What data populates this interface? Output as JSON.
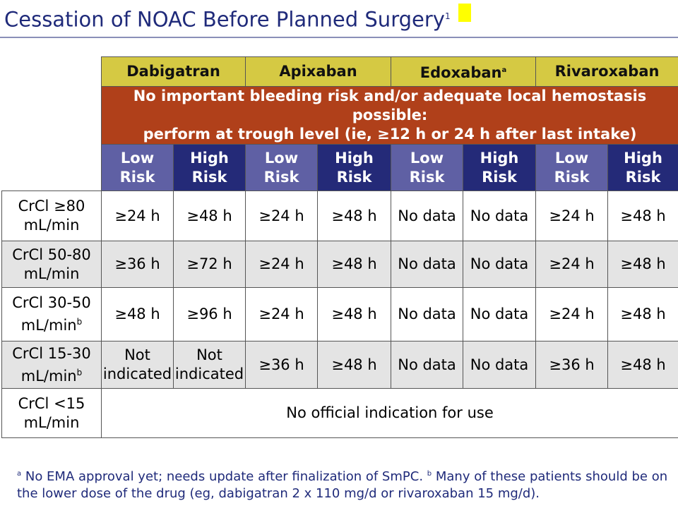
{
  "title": {
    "text": "Cessation of NOAC Before Planned Surgery",
    "superscript": "1",
    "marker_color": "#ffff00"
  },
  "colors": {
    "title": "#1f2a7a",
    "drug_header": "#d5c943",
    "banner": "#b0401a",
    "low_risk": "#5f60a4",
    "high_risk": "#242a78",
    "row_shade": "#e4e4e4"
  },
  "table": {
    "drugs": [
      {
        "name": "Dabigatran",
        "sup": ""
      },
      {
        "name": "Apixaban",
        "sup": ""
      },
      {
        "name": "Edoxaban",
        "sup": "a"
      },
      {
        "name": "Rivaroxaban",
        "sup": ""
      }
    ],
    "banner": {
      "line1": "No important bleeding risk and/or adequate local hemostasis possible:",
      "line2": "perform at trough level (ie, ≥12 h or 24 h after last intake)"
    },
    "risk_headers": [
      {
        "line1": "Low",
        "line2": "Risk"
      },
      {
        "line1": "High",
        "line2": "Risk"
      },
      {
        "line1": "Low",
        "line2": "Risk"
      },
      {
        "line1": "High",
        "line2": "Risk"
      },
      {
        "line1": "Low",
        "line2": "Risk"
      },
      {
        "line1": "High",
        "line2": "Risk"
      },
      {
        "line1": "Low",
        "line2": "Risk"
      },
      {
        "line1": "High",
        "line2": "Risk"
      }
    ],
    "rows": [
      {
        "label1": "CrCl ≥80",
        "label2": "mL/min",
        "sup": "",
        "values": [
          "≥24 h",
          "≥48 h",
          "≥24 h",
          "≥48 h",
          "No data",
          "No data",
          "≥24 h",
          "≥48 h"
        ]
      },
      {
        "label1": "CrCl 50-80",
        "label2": "mL/min",
        "sup": "",
        "values": [
          "≥36 h",
          "≥72 h",
          "≥24 h",
          "≥48 h",
          "No data",
          "No data",
          "≥24 h",
          "≥48 h"
        ]
      },
      {
        "label1": "CrCl 30-50",
        "label2": "mL/min",
        "sup": "b",
        "values": [
          "≥48 h",
          "≥96 h",
          "≥24 h",
          "≥48 h",
          "No data",
          "No data",
          "≥24 h",
          "≥48 h"
        ]
      },
      {
        "label1": "CrCl 15-30",
        "label2": "mL/min",
        "sup": "b",
        "dabigatran_low": [
          "Not",
          "indicated"
        ],
        "dabigatran_high": [
          "Not",
          "indicated"
        ],
        "values": [
          "≥36 h",
          "≥48 h",
          "No data",
          "No data",
          "≥36 h",
          "≥48 h"
        ]
      }
    ],
    "last_row": {
      "label1": "CrCl <15",
      "label2": "mL/min",
      "text": "No official indication for use"
    }
  },
  "footnote": {
    "sup_a": "a",
    "text_a": " No EMA approval yet; needs update after finalization of SmPC. ",
    "sup_b": "b",
    "text_b": " Many of these patients should be on the lower dose of the drug (eg, dabigatran 2 x 110 mg/d or rivaroxaban 15 mg/d)."
  }
}
